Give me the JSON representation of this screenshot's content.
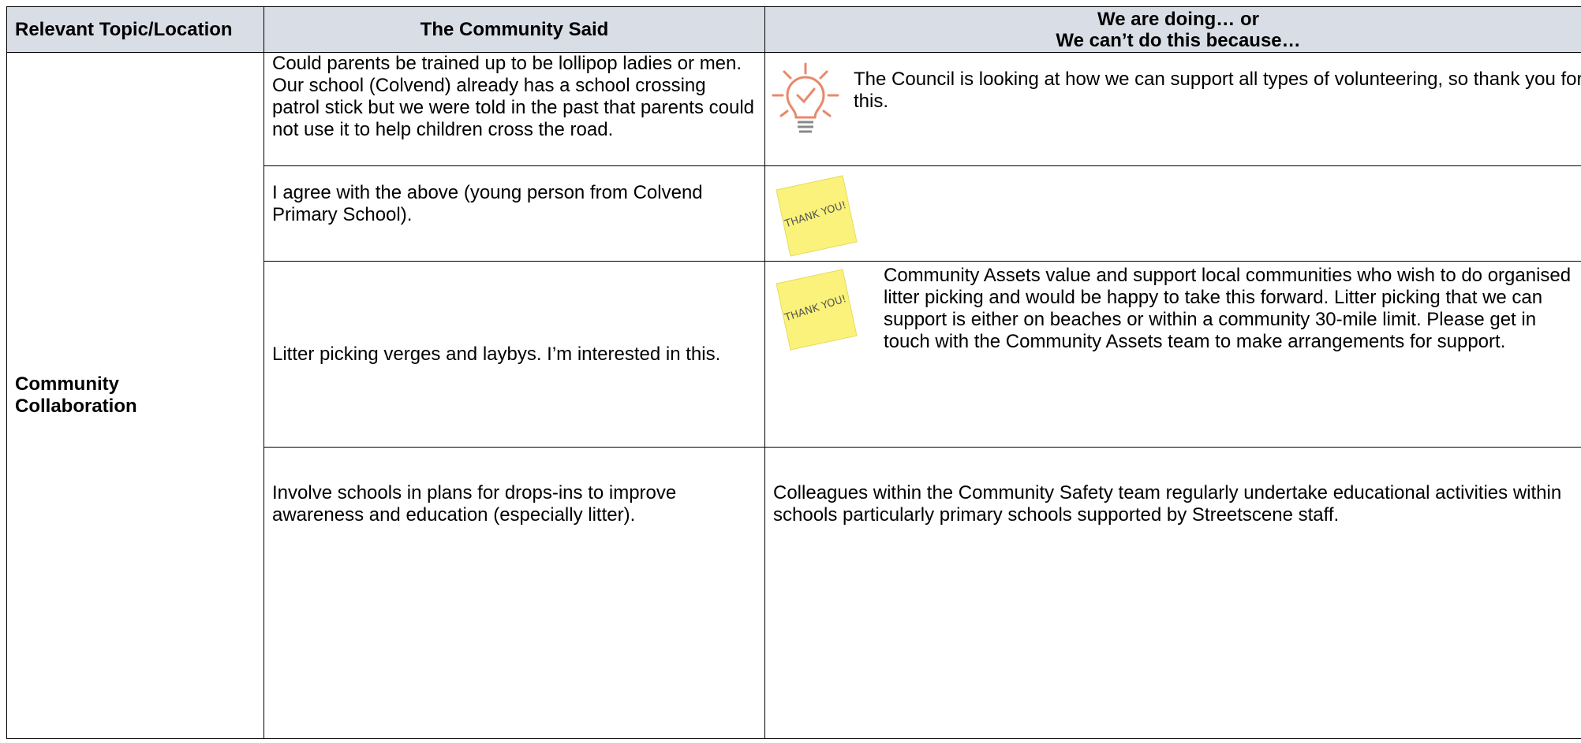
{
  "table": {
    "header": [
      "Relevant Topic/Location",
      "The Community Said",
      [
        "We are doing… or",
        "We can’t do this because…"
      ]
    ],
    "topic": "Community Collaboration",
    "note_text": "THANK YOU!",
    "rows": [
      {
        "said": "Could parents be trained up to be lollipop ladies or men.  Our school (Colvend) already has a school crossing patrol stick but we were told in the past that parents could not use it to help children cross the road.",
        "response": "The Council is looking at how we can support all types of volunteering, so thank you for this."
      },
      {
        "said": "I agree with the above (young person from Colvend Primary School)."
      },
      {
        "said": "Litter picking verges and laybys.  I’m interested in this.",
        "response": "Community Assets value and support local communities who wish to do organised litter picking and would be happy to take this forward.  Litter picking that we can support is either on beaches or within a community 30-mile limit.  Please get in touch with the Community Assets team to make arrangements for support."
      },
      {
        "said": "Involve schools in plans for drops-ins to improve awareness and education (especially litter).",
        "response": "Colleagues within the Community Safety team regularly undertake educational activities within schools particularly primary schools supported by Streetscene staff."
      }
    ]
  }
}
